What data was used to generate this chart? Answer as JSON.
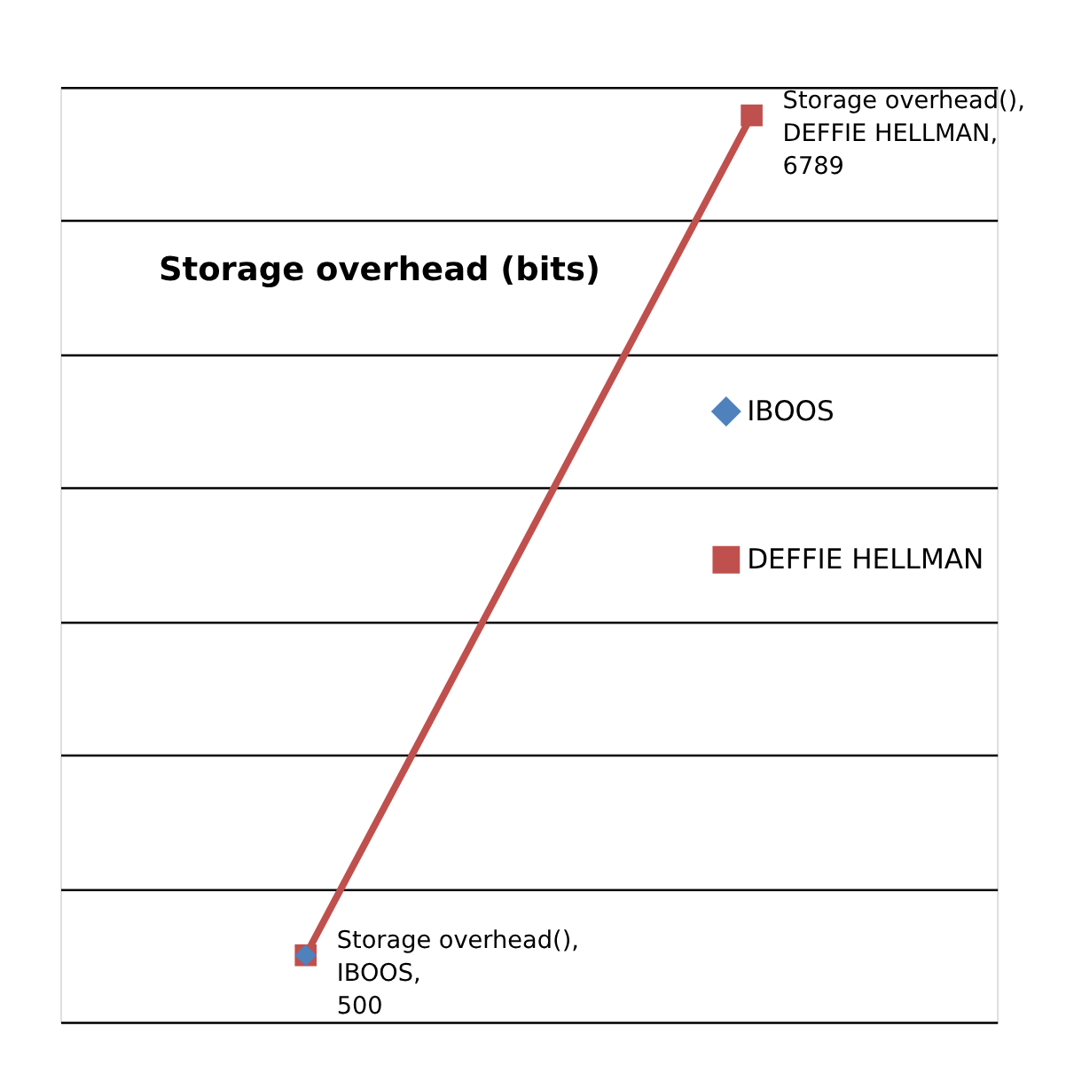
{
  "chart_data": {
    "type": "line",
    "title": "Storage overhead (bits)",
    "categories": [
      null,
      null
    ],
    "series": [
      {
        "name": "IBOOS",
        "color": "#4f81bd",
        "marker": "diamond",
        "values": [
          500,
          null
        ],
        "value_labels": [
          "Storage overhead(), IBOOS, 500",
          null
        ]
      },
      {
        "name": "DEFFIE HELLMAN",
        "color": "#c0504d",
        "marker": "square",
        "values": [
          500,
          6789
        ],
        "value_labels": [
          null,
          "Storage overhead(), DEFFIE HELLMAN, 6789"
        ]
      }
    ],
    "grid": "y",
    "legend": "right",
    "tick_labels": false
  }
}
